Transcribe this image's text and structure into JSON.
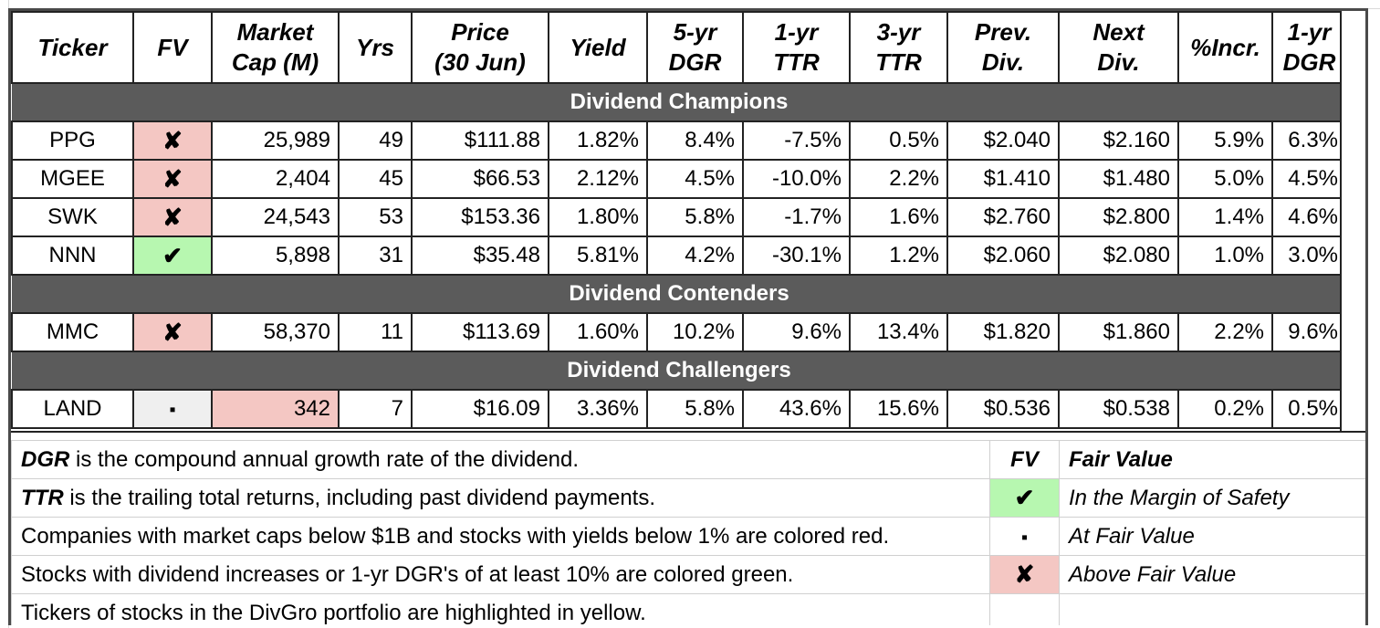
{
  "columns": [
    "Ticker",
    "FV",
    "Market\nCap (M)",
    "Yrs",
    "Price\n(30 Jun)",
    "Yield",
    "5-yr\nDGR",
    "1-yr\nTTR",
    "3-yr\nTTR",
    "Prev.\nDiv.",
    "Next\nDiv.",
    "%Incr.",
    "1-yr\nDGR"
  ],
  "sections": [
    {
      "title": "Dividend Champions",
      "rows": [
        {
          "ticker": "PPG",
          "fv": "x",
          "cap": "25,989",
          "yrs": "49",
          "price": "$111.88",
          "yield": "1.82%",
          "dgr5": "8.4%",
          "ttr1": "-7.5%",
          "ttr3": "0.5%",
          "prev": "$2.040",
          "next": "$2.160",
          "incr": "5.9%",
          "dgr1": "6.3%"
        },
        {
          "ticker": "MGEE",
          "fv": "x",
          "cap": "2,404",
          "yrs": "45",
          "price": "$66.53",
          "yield": "2.12%",
          "dgr5": "4.5%",
          "ttr1": "-10.0%",
          "ttr3": "2.2%",
          "prev": "$1.410",
          "next": "$1.480",
          "incr": "5.0%",
          "dgr1": "4.5%"
        },
        {
          "ticker": "SWK",
          "fv": "x",
          "cap": "24,543",
          "yrs": "53",
          "price": "$153.36",
          "yield": "1.80%",
          "dgr5": "5.8%",
          "ttr1": "-1.7%",
          "ttr3": "1.6%",
          "prev": "$2.760",
          "next": "$2.800",
          "incr": "1.4%",
          "dgr1": "4.6%"
        },
        {
          "ticker": "NNN",
          "fv": "ok",
          "cap": "5,898",
          "yrs": "31",
          "price": "$35.48",
          "yield": "5.81%",
          "dgr5": "4.2%",
          "ttr1": "-30.1%",
          "ttr3": "1.2%",
          "prev": "$2.060",
          "next": "$2.080",
          "incr": "1.0%",
          "dgr1": "3.0%"
        }
      ]
    },
    {
      "title": "Dividend Contenders",
      "rows": [
        {
          "ticker": "MMC",
          "fv": "x",
          "cap": "58,370",
          "yrs": "11",
          "price": "$113.69",
          "yield": "1.60%",
          "dgr5": "10.2%",
          "ttr1": "9.6%",
          "ttr3": "13.4%",
          "prev": "$1.820",
          "next": "$1.860",
          "incr": "2.2%",
          "dgr1": "9.6%"
        }
      ]
    },
    {
      "title": "Dividend Challengers",
      "rows": [
        {
          "ticker": "LAND",
          "fv": "eq",
          "cap": "342",
          "capRed": true,
          "yrs": "7",
          "price": "$16.09",
          "yield": "3.36%",
          "dgr5": "5.8%",
          "ttr1": "43.6%",
          "ttr3": "15.6%",
          "prev": "$0.536",
          "next": "$0.538",
          "incr": "0.2%",
          "dgr1": "0.5%"
        }
      ]
    }
  ],
  "symbols": {
    "x": "✘",
    "ok": "✔",
    "eq": "▪"
  },
  "legend": {
    "l1_term": "DGR",
    "l1_rest": " is the compound annual growth rate of the dividend.",
    "l2_term": "TTR",
    "l2_rest": " is the trailing total returns, including past dividend payments.",
    "l3": "Companies with market caps below $1B and stocks with yields below 1% are colored red.",
    "l4": "Stocks with dividend increases or 1-yr DGR's of at least 10% are colored green.",
    "l5": "Tickers of stocks in the DivGro portfolio are highlighted in yellow.",
    "fv_head": "FV",
    "fv_title": "Fair Value",
    "fv_ok": "In the Margin of Safety",
    "fv_eq": "At Fair Value",
    "fv_x": "Above Fair Value"
  },
  "colors": {
    "section_bg": "#5b5b5b",
    "red": "#f4c7c3",
    "green": "#b7f7b0",
    "grey": "#efefef"
  }
}
